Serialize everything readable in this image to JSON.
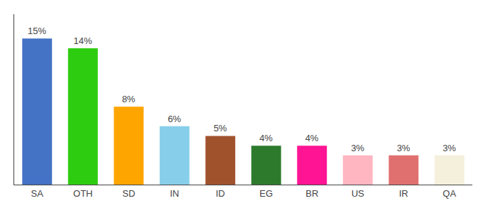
{
  "chart_data": {
    "type": "bar",
    "categories": [
      "SA",
      "OTH",
      "SD",
      "IN",
      "ID",
      "EG",
      "BR",
      "US",
      "IR",
      "QA"
    ],
    "values": [
      15,
      14,
      8,
      6,
      5,
      4,
      4,
      3,
      3,
      3
    ],
    "value_labels": [
      "15%",
      "14%",
      "8%",
      "6%",
      "5%",
      "4%",
      "4%",
      "3%",
      "3%",
      "3%"
    ],
    "data_labels": true,
    "colors": [
      "#4472C4",
      "#2ECC11",
      "#FFA500",
      "#87CEEB",
      "#A0522D",
      "#2D7A2D",
      "#FF1493",
      "#FFB6C1",
      "#E07070",
      "#F5F0DC"
    ],
    "ylim": [
      0,
      17.5
    ],
    "tick_labels": "x",
    "grid": false
  }
}
